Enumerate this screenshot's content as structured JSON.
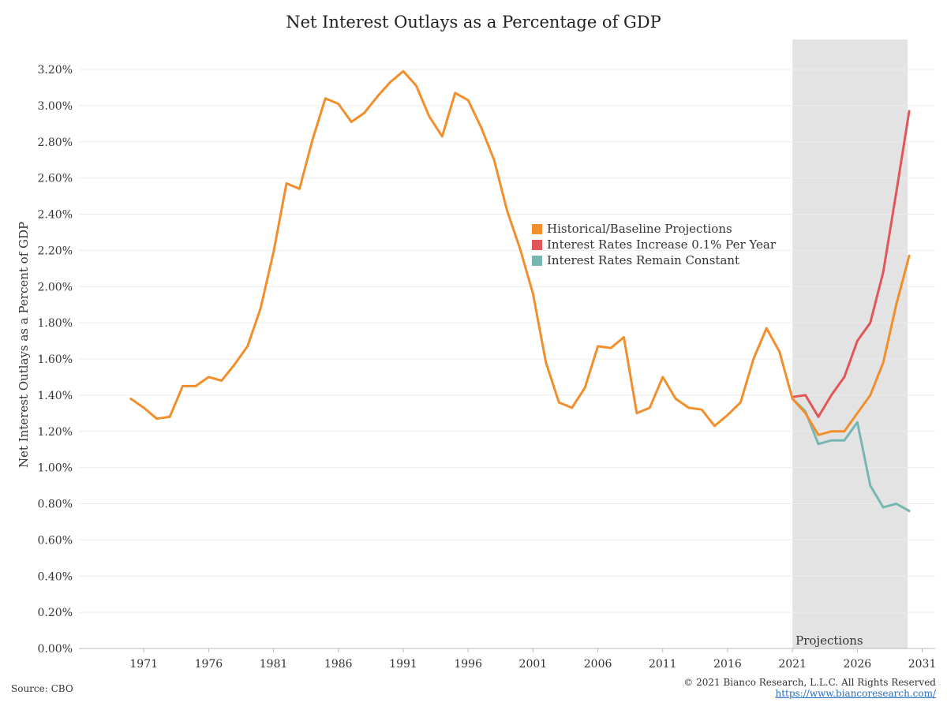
{
  "title": "Net Interest Outlays as a Percentage of GDP",
  "source": "Source: CBO",
  "copyright": "© 2021 Bianco Research, L.L.C. All Rights Reserved",
  "url": "https://www.biancoresearch.com/",
  "projection_label": "Projections",
  "chart_data": {
    "type": "line",
    "title": "Net Interest Outlays as a Percentage of GDP",
    "ylabel": "Net Interest Outlays as a Percent of GDP",
    "xlabel": "",
    "xlim": [
      1966,
      2032
    ],
    "ylim": [
      0,
      3.2
    ],
    "grid": true,
    "legend_position": "center-right",
    "x_ticks": [
      1971,
      1976,
      1981,
      1986,
      1991,
      1996,
      2001,
      2006,
      2011,
      2016,
      2021,
      2026,
      2031
    ],
    "y_ticks": [
      0,
      0.2,
      0.4,
      0.6,
      0.8,
      1.0,
      1.2,
      1.4,
      1.6,
      1.8,
      2.0,
      2.2,
      2.4,
      2.6,
      2.8,
      3.0,
      3.2
    ],
    "y_tick_labels": [
      "0.00%",
      "0.20%",
      "0.40%",
      "0.60%",
      "0.80%",
      "1.00%",
      "1.20%",
      "1.40%",
      "1.60%",
      "1.80%",
      "2.00%",
      "2.20%",
      "2.40%",
      "2.60%",
      "2.80%",
      "3.00%",
      "3.20%"
    ],
    "projection_range": [
      2021,
      2030
    ],
    "series": [
      {
        "name": "Historical/Baseline Projections",
        "color": "#f28e2b",
        "x": [
          1970,
          1971,
          1972,
          1973,
          1974,
          1975,
          1976,
          1977,
          1978,
          1979,
          1980,
          1981,
          1982,
          1983,
          1984,
          1985,
          1986,
          1987,
          1988,
          1989,
          1990,
          1991,
          1992,
          1993,
          1994,
          1995,
          1996,
          1997,
          1998,
          1999,
          2000,
          2001,
          2002,
          2003,
          2004,
          2005,
          2006,
          2007,
          2008,
          2009,
          2010,
          2011,
          2012,
          2013,
          2014,
          2015,
          2016,
          2017,
          2018,
          2019,
          2020,
          2021,
          2022,
          2023,
          2024,
          2025,
          2026,
          2027,
          2028,
          2029,
          2030
        ],
        "values": [
          1.38,
          1.33,
          1.27,
          1.28,
          1.45,
          1.45,
          1.5,
          1.48,
          1.57,
          1.67,
          1.88,
          2.19,
          2.57,
          2.54,
          2.81,
          3.04,
          3.01,
          2.91,
          2.96,
          3.05,
          3.13,
          3.19,
          3.11,
          2.94,
          2.83,
          3.07,
          3.03,
          2.88,
          2.7,
          2.42,
          2.21,
          1.96,
          1.58,
          1.36,
          1.33,
          1.44,
          1.67,
          1.66,
          1.72,
          1.3,
          1.33,
          1.5,
          1.38,
          1.33,
          1.32,
          1.23,
          1.29,
          1.36,
          1.6,
          1.77,
          1.64,
          1.38,
          1.3,
          1.18,
          1.2,
          1.2,
          1.3,
          1.4,
          1.58,
          1.9,
          2.17
        ]
      },
      {
        "name": "Interest Rates Increase 0.1% Per Year",
        "color": "#e15759",
        "x": [
          2021,
          2022,
          2023,
          2024,
          2025,
          2026,
          2027,
          2028,
          2029,
          2030
        ],
        "values": [
          1.39,
          1.4,
          1.28,
          1.4,
          1.5,
          1.7,
          1.8,
          2.08,
          2.52,
          2.97
        ]
      },
      {
        "name": "Interest Rates Remain Constant",
        "color": "#76b7b2",
        "x": [
          2021,
          2022,
          2023,
          2024,
          2025,
          2026,
          2027,
          2028,
          2029,
          2030
        ],
        "values": [
          1.38,
          1.31,
          1.13,
          1.15,
          1.15,
          1.25,
          0.9,
          0.78,
          0.8,
          0.76
        ]
      }
    ]
  }
}
